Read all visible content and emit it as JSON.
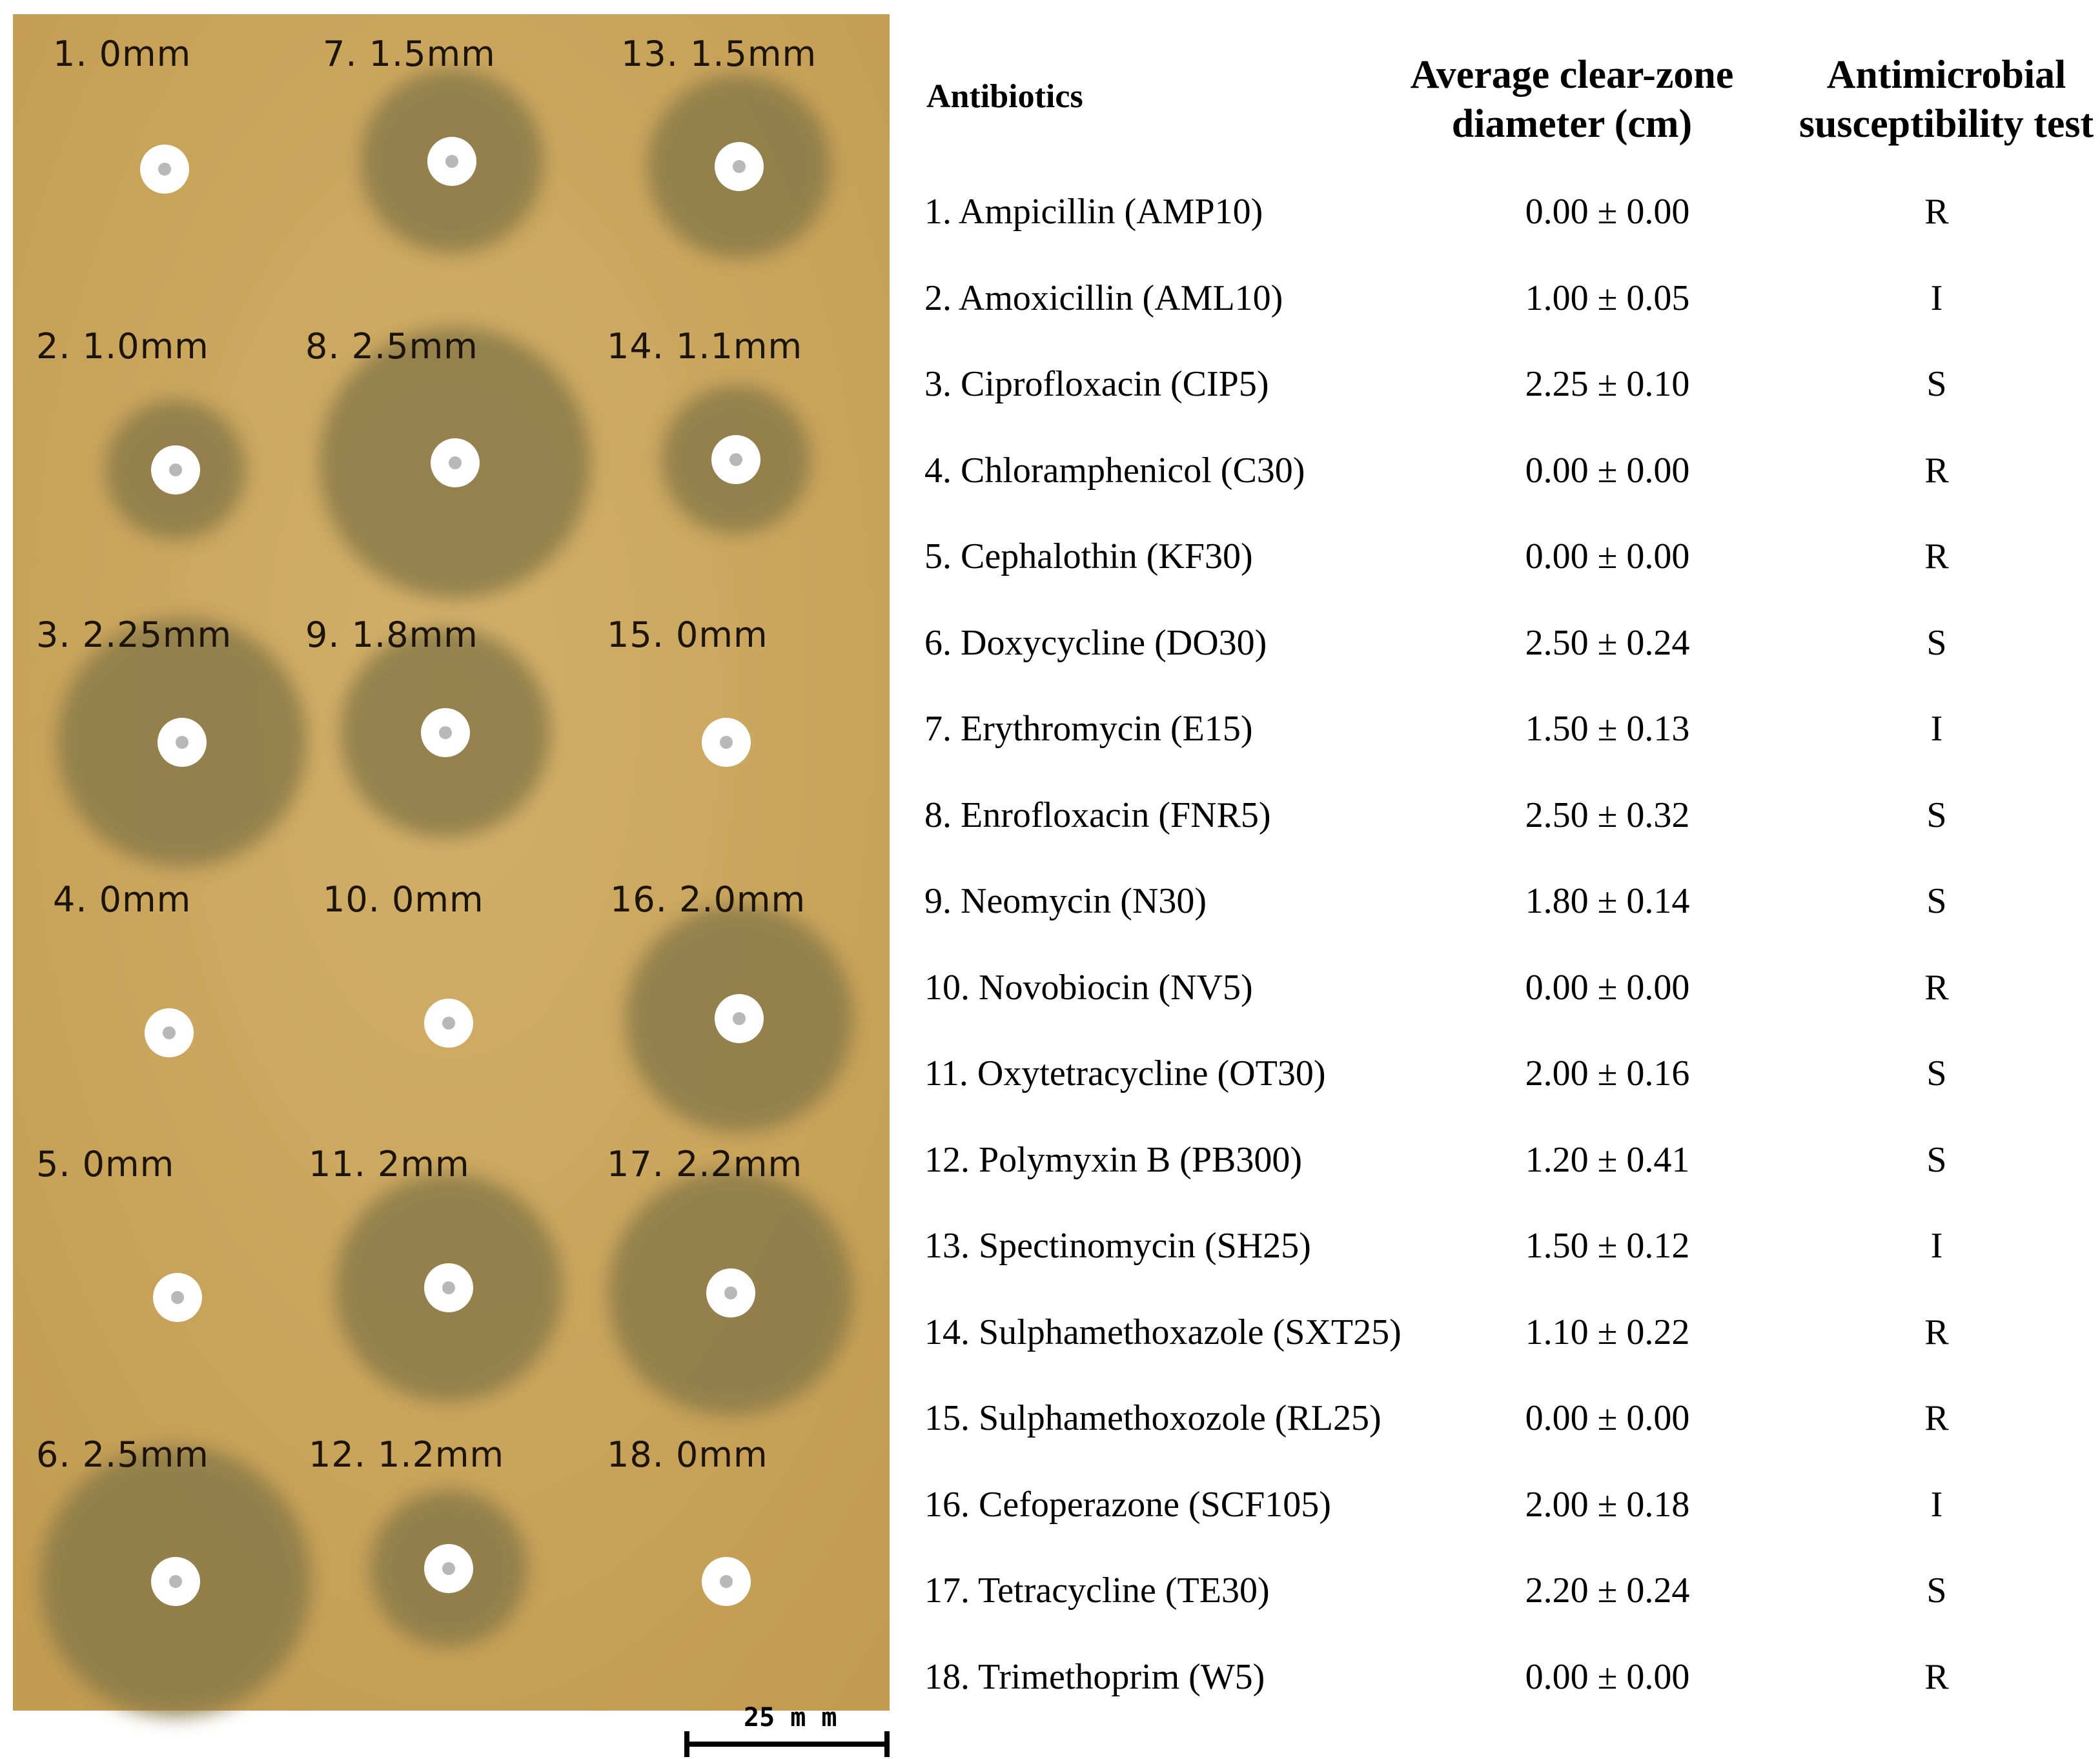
{
  "plate": {
    "background_color": "#c8a45c",
    "zone_color": "#8a7a4a",
    "disk_color": "#ffffff",
    "labels": [
      "1. 0mm",
      "7. 1.5mm",
      "13. 1.5mm",
      "2. 1.0mm",
      "8. 2.5mm",
      "14. 1.1mm",
      "3. 2.25mm",
      "9. 1.8mm",
      "15. 0mm",
      "4. 0mm",
      "10. 0mm",
      "16. 2.0mm",
      "5. 0mm",
      "11. 2mm",
      "17. 2.2mm",
      "6. 2.5mm",
      "12. 1.2mm",
      "18. 0mm"
    ],
    "scale_bar_label": "25 m m"
  },
  "table": {
    "headers": {
      "antibiotics": "Antibiotics",
      "clear_zone_line1": "Average clear-zone",
      "clear_zone_line2": "diameter (cm)",
      "ast_line1": "Antimicrobial",
      "ast_line2": "susceptibility test"
    },
    "rows": [
      {
        "name": "1. Ampicillin (AMP10)",
        "value": "0.00 ± 0.00",
        "result": "R"
      },
      {
        "name": "2. Amoxicillin (AML10)",
        "value": "1.00 ± 0.05",
        "result": "I"
      },
      {
        "name": "3. Ciprofloxacin (CIP5)",
        "value": "2.25 ± 0.10",
        "result": "S"
      },
      {
        "name": "4. Chloramphenicol (C30)",
        "value": "0.00 ± 0.00",
        "result": "R"
      },
      {
        "name": "5. Cephalothin (KF30)",
        "value": "0.00 ± 0.00",
        "result": "R"
      },
      {
        "name": "6. Doxycycline (DO30)",
        "value": "2.50 ± 0.24",
        "result": "S"
      },
      {
        "name": "7. Erythromycin (E15)",
        "value": "1.50 ± 0.13",
        "result": "I"
      },
      {
        "name": "8. Enrofloxacin (FNR5)",
        "value": "2.50 ± 0.32",
        "result": "S"
      },
      {
        "name": "9. Neomycin (N30)",
        "value": "1.80 ± 0.14",
        "result": "S"
      },
      {
        "name": "10. Novobiocin (NV5)",
        "value": "0.00 ± 0.00",
        "result": "R"
      },
      {
        "name": "11. Oxytetracycline (OT30)",
        "value": "2.00 ± 0.16",
        "result": "S"
      },
      {
        "name": "12. Polymyxin B (PB300)",
        "value": "1.20 ± 0.41",
        "result": "S"
      },
      {
        "name": "13. Spectinomycin (SH25)",
        "value": "1.50 ± 0.12",
        "result": "I"
      },
      {
        "name": "14. Sulphamethoxazole (SXT25)",
        "value": "1.10 ± 0.22",
        "result": "R"
      },
      {
        "name": "15. Sulphamethoxozole (RL25)",
        "value": "0.00 ± 0.00",
        "result": "R"
      },
      {
        "name": "16. Cefoperazone (SCF105)",
        "value": "2.00 ± 0.18",
        "result": "I"
      },
      {
        "name": "17. Tetracycline (TE30)",
        "value": "2.20 ± 0.24",
        "result": "S"
      },
      {
        "name": "18. Trimethoprim (W5)",
        "value": "0.00 ± 0.00",
        "result": "R"
      }
    ]
  }
}
